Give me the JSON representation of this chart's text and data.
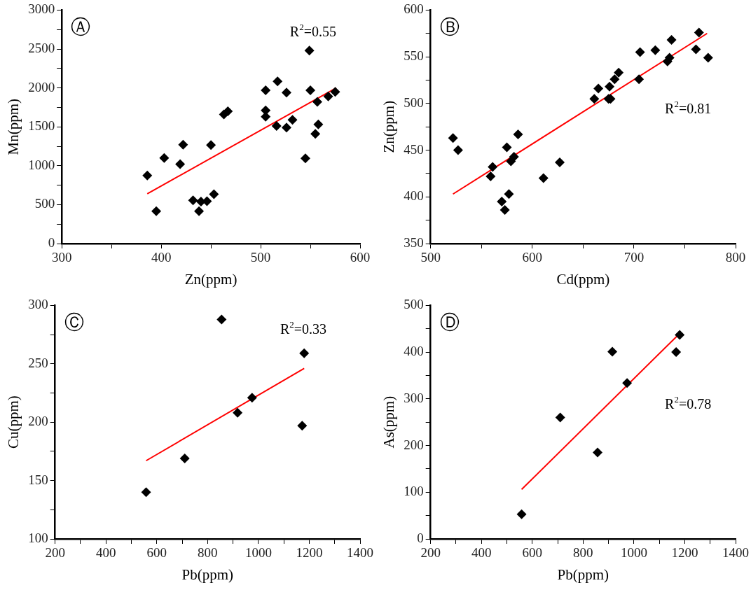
{
  "chart_data": [
    {
      "type": "scatter",
      "xlabel": "Zn(ppm)",
      "ylabel": "Mn(ppm)",
      "annotations": [
        "Ⓐ",
        "R$^{2}$=0.55"
      ],
      "marker": "diamond",
      "grid": false,
      "xlim": [
        300,
        600
      ],
      "ylim": [
        0,
        3000
      ],
      "xticks": [
        300,
        {
          "value": 350,
          "label": null
        },
        400,
        {
          "value": 450,
          "label": null
        },
        500,
        {
          "value": 550,
          "label": null
        },
        600
      ],
      "yticks": [
        0,
        {
          "value": 250,
          "label": null
        },
        500,
        {
          "value": 750,
          "label": null
        },
        1000,
        {
          "value": 1250,
          "label": null
        },
        1500,
        {
          "value": 1750,
          "label": null
        },
        2000,
        {
          "value": 2250,
          "label": null
        },
        2500,
        {
          "value": 2750,
          "label": null
        },
        3000
      ],
      "series": [
        {
          "color": "#000000",
          "x": [
            386,
            395,
            403,
            419,
            422,
            432,
            438,
            440,
            446,
            450,
            453,
            463,
            467,
            505,
            505,
            505,
            516,
            517,
            526,
            526,
            532,
            545,
            549,
            550,
            555,
            557,
            558,
            568,
            575
          ],
          "values": [
            875,
            415,
            1100,
            1020,
            1270,
            555,
            415,
            540,
            545,
            1265,
            635,
            1660,
            1700,
            1970,
            1710,
            1630,
            1510,
            2085,
            1940,
            1490,
            1590,
            1095,
            2480,
            1970,
            1410,
            1820,
            1530,
            1890,
            1950
          ]
        },
        {
          "type": "line",
          "marker": "none",
          "color": "#ff0000",
          "x": [
            386,
            576
          ],
          "values": [
            640,
            2000
          ]
        }
      ]
    },
    {
      "type": "scatter",
      "xlabel": "Cd(ppm)",
      "ylabel": "Zn(ppm)",
      "annotations": [
        "Ⓑ",
        "R$^{2}$=0.81"
      ],
      "marker": "diamond",
      "grid": false,
      "xlim": [
        500,
        800
      ],
      "ylim": [
        350,
        600
      ],
      "xticks": [
        500,
        {
          "value": 550,
          "label": null
        },
        600,
        {
          "value": 650,
          "label": null
        },
        700,
        {
          "value": 750,
          "label": null
        },
        800
      ],
      "yticks": [
        350,
        {
          "value": 375,
          "label": null
        },
        400,
        {
          "value": 425,
          "label": null
        },
        450,
        {
          "value": 475,
          "label": null
        },
        500,
        {
          "value": 525,
          "label": null
        },
        550,
        {
          "value": 575,
          "label": null
        },
        600
      ],
      "series": [
        {
          "color": "#000000",
          "x": [
            522,
            527,
            559,
            561,
            570,
            573,
            575,
            577,
            579,
            582,
            586,
            611,
            627,
            661,
            665,
            675,
            676,
            677,
            681,
            685,
            705,
            706,
            721,
            733,
            735,
            737,
            761,
            764,
            773
          ],
          "values": [
            463,
            450,
            422,
            432,
            395,
            386,
            453,
            403,
            438,
            443,
            467,
            420,
            437,
            505,
            516,
            505,
            518,
            505,
            526,
            533,
            526,
            555,
            557,
            545,
            549,
            568,
            558,
            576,
            549
          ]
        },
        {
          "type": "line",
          "marker": "none",
          "color": "#ff0000",
          "x": [
            522,
            772
          ],
          "values": [
            403,
            575
          ]
        }
      ]
    },
    {
      "type": "scatter",
      "xlabel": "Pb(ppm)",
      "ylabel": "Cu(ppm)",
      "annotations": [
        "Ⓒ",
        "R$^{2}$=0.33"
      ],
      "marker": "diamond",
      "grid": false,
      "xlim": [
        200,
        1400
      ],
      "ylim": [
        100,
        300
      ],
      "xticks": [
        200,
        {
          "value": 300,
          "label": null
        },
        400,
        {
          "value": 500,
          "label": null
        },
        600,
        {
          "value": 700,
          "label": null
        },
        800,
        {
          "value": 900,
          "label": null
        },
        1000,
        {
          "value": 1100,
          "label": null
        },
        1200,
        {
          "value": 1300,
          "label": null
        },
        1400
      ],
      "yticks": [
        100,
        {
          "value": 125,
          "label": null
        },
        150,
        {
          "value": 175,
          "label": null
        },
        200,
        {
          "value": 225,
          "label": null
        },
        250,
        {
          "value": 275,
          "label": null
        },
        300
      ],
      "series": [
        {
          "color": "#000000",
          "x": [
            558,
            710,
            855,
            918,
            975,
            1172,
            1180
          ],
          "values": [
            140,
            169,
            288,
            208,
            221,
            197,
            259
          ]
        },
        {
          "type": "line",
          "marker": "none",
          "color": "#ff0000",
          "x": [
            558,
            1180
          ],
          "values": [
            167,
            246
          ]
        }
      ]
    },
    {
      "type": "scatter",
      "xlabel": "Pb(ppm)",
      "ylabel": "As(ppm)",
      "annotations": [
        "Ⓓ",
        "R$^{2}$=0.78"
      ],
      "marker": "diamond",
      "grid": false,
      "xlim": [
        200,
        1400
      ],
      "ylim": [
        0,
        500
      ],
      "xticks": [
        200,
        {
          "value": 300,
          "label": null
        },
        400,
        {
          "value": 500,
          "label": null
        },
        600,
        {
          "value": 700,
          "label": null
        },
        800,
        {
          "value": 900,
          "label": null
        },
        1000,
        {
          "value": 1100,
          "label": null
        },
        1200,
        {
          "value": 1300,
          "label": null
        },
        1400
      ],
      "yticks": [
        0,
        {
          "value": 50,
          "label": null
        },
        100,
        {
          "value": 150,
          "label": null
        },
        200,
        {
          "value": 250,
          "label": null
        },
        300,
        {
          "value": 350,
          "label": null
        },
        400,
        {
          "value": 450,
          "label": null
        },
        500
      ],
      "series": [
        {
          "color": "#000000",
          "x": [
            558,
            710,
            857,
            915,
            973,
            1166,
            1180
          ],
          "values": [
            53,
            260,
            185,
            401,
            334,
            400,
            437
          ]
        },
        {
          "type": "line",
          "marker": "none",
          "color": "#ff0000",
          "x": [
            558,
            1180
          ],
          "values": [
            106,
            440
          ]
        }
      ]
    }
  ]
}
